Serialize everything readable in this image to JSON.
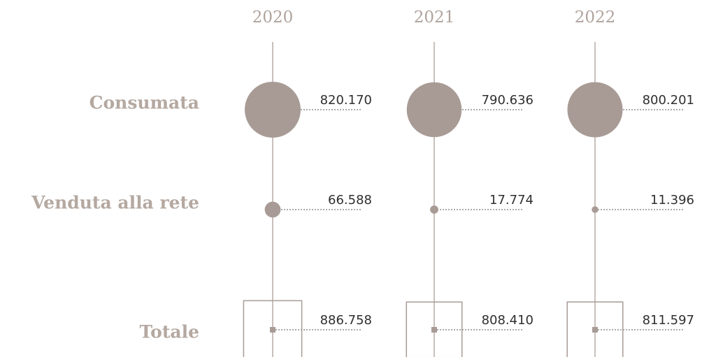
{
  "chart_data": {
    "type": "bubble",
    "categories": [
      "2020",
      "2021",
      "2022"
    ],
    "series": [
      {
        "name": "Consumata",
        "color": "#a89b95",
        "marker": "circle",
        "values": [
          820170,
          790636,
          800201
        ],
        "value_labels": [
          "820.170",
          "790.636",
          "800.201"
        ]
      },
      {
        "name": "Venduta alla rete",
        "color": "#a89b95",
        "marker": "circle",
        "values": [
          66588,
          17774,
          11396
        ],
        "value_labels": [
          "66.588",
          "17.774",
          "11.396"
        ]
      },
      {
        "name": "Totale",
        "color": "#a89b95",
        "marker": "square",
        "values": [
          886758,
          808410,
          811597
        ],
        "value_labels": [
          "886.758",
          "808.410",
          "811.597"
        ]
      }
    ]
  }
}
